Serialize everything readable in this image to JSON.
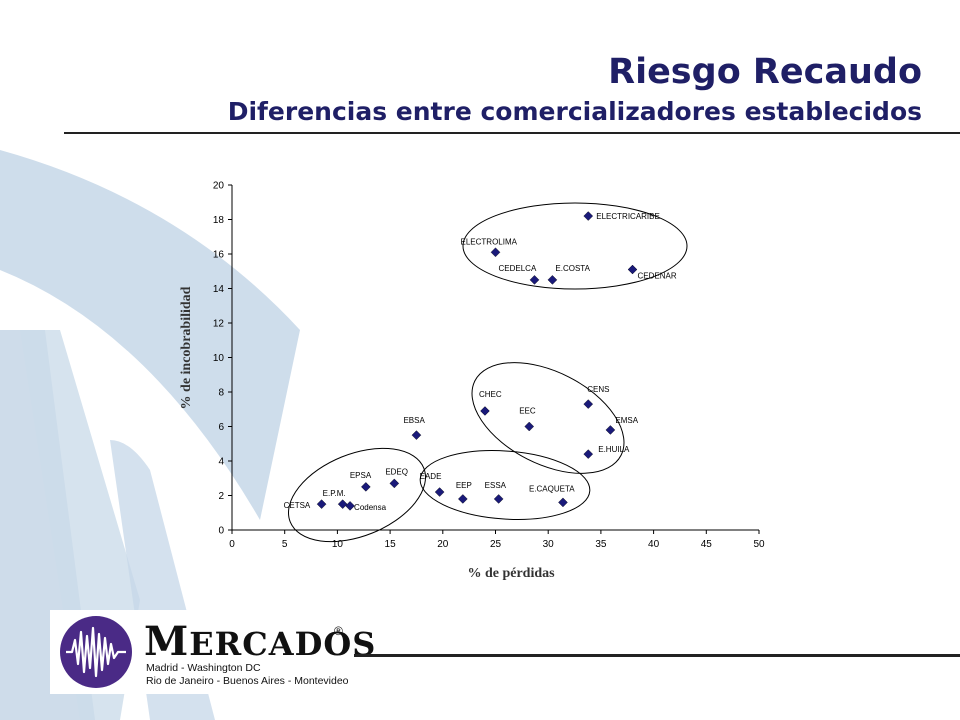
{
  "header": {
    "title": "Riesgo Recaudo",
    "subtitle": "Diferencias entre comercializadores establecidos"
  },
  "colors": {
    "title": "#1f1f66",
    "marker": "#1a1a7a",
    "background_art": "#c5d7e8"
  },
  "chart_data": {
    "type": "scatter",
    "title": "",
    "xlabel": "% de pérdidas",
    "ylabel": "% de incobrabilidad",
    "xlim": [
      0,
      50
    ],
    "ylim": [
      0,
      20
    ],
    "xticks": [
      0,
      5,
      10,
      15,
      20,
      25,
      30,
      35,
      40,
      45,
      50
    ],
    "yticks": [
      0,
      2,
      4,
      6,
      8,
      10,
      12,
      14,
      16,
      18,
      20
    ],
    "grid": false,
    "points": [
      {
        "label": "CETSA",
        "x": 8.5,
        "y": 1.5
      },
      {
        "label": "E.P.M.",
        "x": 10.5,
        "y": 1.5
      },
      {
        "label": "Codensa",
        "x": 11.2,
        "y": 1.4
      },
      {
        "label": "EPSA",
        "x": 12.7,
        "y": 2.5
      },
      {
        "label": "EDEQ",
        "x": 15.4,
        "y": 2.7
      },
      {
        "label": "EBSA",
        "x": 17.5,
        "y": 5.5
      },
      {
        "label": "EADE",
        "x": 19.7,
        "y": 2.2
      },
      {
        "label": "EEP",
        "x": 21.9,
        "y": 1.8
      },
      {
        "label": "ESSA",
        "x": 25.3,
        "y": 1.8
      },
      {
        "label": "E.CAQUETA",
        "x": 31.4,
        "y": 1.6
      },
      {
        "label": "CHEC",
        "x": 24.0,
        "y": 6.9
      },
      {
        "label": "EEC",
        "x": 28.2,
        "y": 6.0
      },
      {
        "label": "CENS",
        "x": 33.8,
        "y": 7.3
      },
      {
        "label": "EMSA",
        "x": 35.9,
        "y": 5.8
      },
      {
        "label": "E.HUILA",
        "x": 33.8,
        "y": 4.4
      },
      {
        "label": "ELECTRICARIBE",
        "x": 33.8,
        "y": 18.2
      },
      {
        "label": "ELECTROLIMA",
        "x": 25.0,
        "y": 16.1
      },
      {
        "label": "CEDELCA",
        "x": 28.7,
        "y": 14.5
      },
      {
        "label": "E.COSTA",
        "x": 30.4,
        "y": 14.5
      },
      {
        "label": "CEDENAR",
        "x": 38.0,
        "y": 15.1
      }
    ]
  },
  "logo": {
    "brand_first": "M",
    "brand_rest": "ERCADOS",
    "registered": "®",
    "tagline_1": "Madrid - Washington DC",
    "tagline_2": "Rio de Janeiro - Buenos Aires - Montevideo"
  }
}
